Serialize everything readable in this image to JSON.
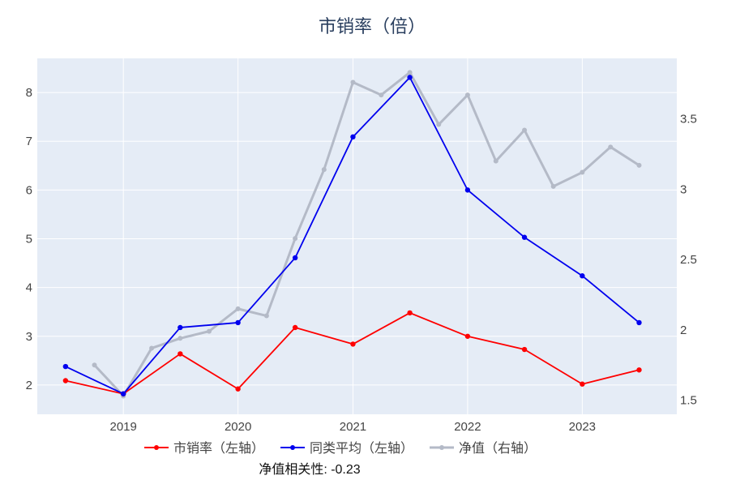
{
  "chart_data": {
    "type": "line",
    "title": "市销率（倍）",
    "x_ticks": [
      "2019",
      "2020",
      "2021",
      "2022",
      "2023"
    ],
    "y_left": {
      "ticks": [
        2,
        3,
        4,
        5,
        6,
        7,
        8
      ],
      "range": [
        1.4,
        8.7
      ]
    },
    "y_right": {
      "ticks": [
        "1.5",
        "2",
        "2.5",
        "3",
        "3.5"
      ],
      "range": [
        1.4,
        3.93
      ]
    },
    "grid": true,
    "legend_position": "bottom",
    "series": [
      {
        "name": "市销率（左轴）",
        "axis": "left",
        "color": "#ff0000",
        "x": [
          "2018-07-01",
          "2019-01-01",
          "2019-07-01",
          "2020-01-01",
          "2020-07-01",
          "2021-01-01",
          "2021-07-01",
          "2022-01-01",
          "2022-07-01",
          "2023-01-01",
          "2023-07-01"
        ],
        "y": [
          2.09,
          1.82,
          2.64,
          1.92,
          3.18,
          2.84,
          3.48,
          3.0,
          2.73,
          2.02,
          2.31
        ]
      },
      {
        "name": "同类平均（左轴）",
        "axis": "left",
        "color": "#0000ee",
        "x": [
          "2018-07-01",
          "2019-01-01",
          "2019-07-01",
          "2020-01-01",
          "2020-07-01",
          "2021-01-01",
          "2021-07-01",
          "2022-01-01",
          "2022-07-01",
          "2023-01-01",
          "2023-07-01"
        ],
        "y": [
          2.38,
          1.82,
          3.18,
          3.28,
          4.61,
          7.09,
          8.31,
          6.0,
          5.03,
          4.24,
          3.28
        ]
      },
      {
        "name": "净值（右轴）",
        "axis": "right",
        "color": "#b4bac7",
        "x": [
          "2018-10-01",
          "2019-01-01",
          "2019-04-01",
          "2019-07-01",
          "2019-10-01",
          "2020-01-01",
          "2020-04-01",
          "2020-07-01",
          "2020-10-01",
          "2021-01-01",
          "2021-04-01",
          "2021-07-01",
          "2021-10-01",
          "2022-01-01",
          "2022-04-01",
          "2022-07-01",
          "2022-10-01",
          "2023-01-01",
          "2023-04-01",
          "2023-07-01"
        ],
        "y": [
          1.75,
          1.53,
          1.87,
          1.94,
          1.99,
          2.15,
          2.1,
          2.65,
          3.14,
          3.76,
          3.67,
          3.83,
          3.46,
          3.67,
          3.2,
          3.42,
          3.02,
          3.12,
          3.3,
          3.17
        ]
      }
    ]
  },
  "correlation_note": "净值相关性: -0.23"
}
